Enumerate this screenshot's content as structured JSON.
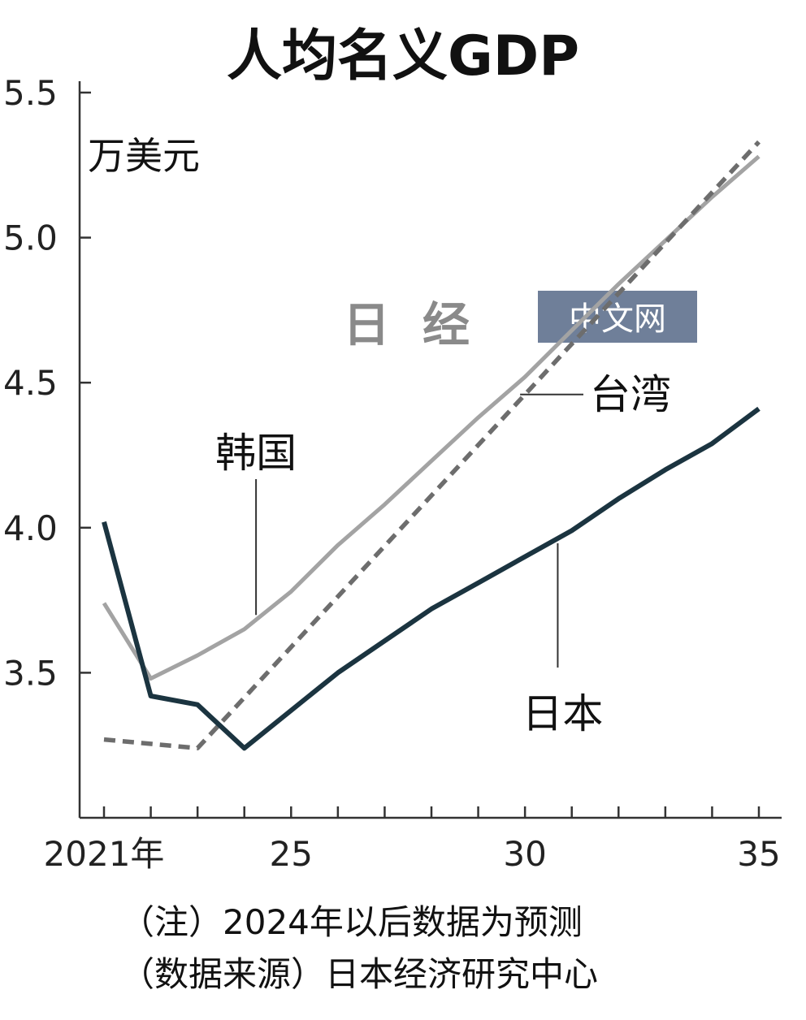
{
  "chart_data": {
    "type": "line",
    "title": "人均名义GDP",
    "ylabel": "万美元",
    "xlabel": "",
    "ylim": [
      3.0,
      5.5
    ],
    "xlim": [
      2021,
      2035
    ],
    "y_ticks": [
      3.5,
      4.0,
      4.5,
      5.0,
      5.5
    ],
    "y_tick_labels": [
      "3.5",
      "4.0",
      "4.5",
      "5.0",
      "5.5"
    ],
    "x_ticks": [
      2021,
      2022,
      2023,
      2024,
      2025,
      2026,
      2027,
      2028,
      2029,
      2030,
      2031,
      2032,
      2033,
      2034,
      2035
    ],
    "x_tick_labels": [
      {
        "x": 2021,
        "label": "2021年"
      },
      {
        "x": 2025,
        "label": "25"
      },
      {
        "x": 2030,
        "label": "30"
      },
      {
        "x": 2035,
        "label": "35"
      }
    ],
    "grid": false,
    "series": [
      {
        "name": "韩国",
        "color": "#a3a3a3",
        "dash": "solid",
        "x": [
          2021,
          2022,
          2023,
          2024,
          2025,
          2026,
          2027,
          2028,
          2029,
          2030,
          2031,
          2032,
          2033,
          2034,
          2035
        ],
        "values": [
          3.74,
          3.48,
          3.56,
          3.65,
          3.78,
          3.94,
          4.08,
          4.23,
          4.38,
          4.52,
          4.68,
          4.84,
          4.99,
          5.14,
          5.28
        ]
      },
      {
        "name": "台湾",
        "color": "#6d6d6d",
        "dash": "dashed",
        "x": [
          2021,
          2023,
          2035
        ],
        "values": [
          3.27,
          3.24,
          5.33
        ]
      },
      {
        "name": "日本",
        "color": "#1b3440",
        "dash": "solid",
        "x": [
          2021,
          2022,
          2023,
          2024,
          2025,
          2026,
          2027,
          2028,
          2029,
          2030,
          2031,
          2032,
          2033,
          2034,
          2035
        ],
        "values": [
          4.02,
          3.42,
          3.39,
          3.24,
          3.37,
          3.5,
          3.61,
          3.72,
          3.81,
          3.9,
          3.99,
          4.1,
          4.2,
          4.29,
          4.41
        ]
      }
    ],
    "annotations": [
      {
        "series": "韩国",
        "text": "韩国",
        "at_x": 2024.25,
        "leader": "vertical"
      },
      {
        "series": "台湾",
        "text": "台湾",
        "at_x": 2030,
        "leader": "horizontal"
      },
      {
        "series": "日本",
        "text": "日本",
        "at_x": 2030.7,
        "leader": "vertical"
      }
    ]
  },
  "notes": [
    "（注）2024年以后数据为预测",
    "（数据来源）日本经济研究中心"
  ],
  "watermark": {
    "glyphs": "日经",
    "box_text": "中文网",
    "box_color": "#6f7f99"
  }
}
